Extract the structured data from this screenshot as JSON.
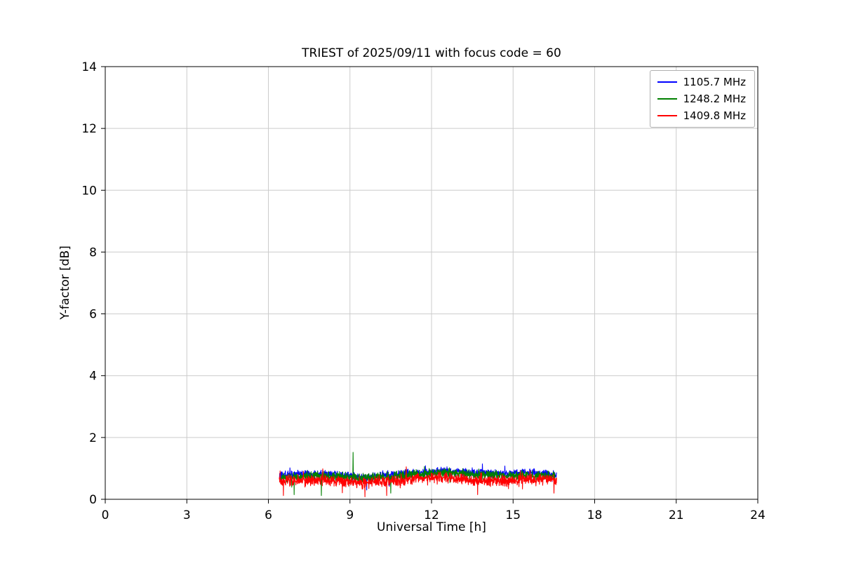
{
  "chart_data": {
    "type": "line",
    "title": "TRIEST of 2025/09/11 with focus code = 60",
    "xlabel": "Universal Time [h]",
    "ylabel": "Y-factor [dB]",
    "xlim": [
      0,
      24
    ],
    "ylim": [
      0,
      14
    ],
    "xticks": [
      0,
      3,
      6,
      9,
      12,
      15,
      18,
      21,
      24
    ],
    "yticks": [
      0,
      2,
      4,
      6,
      8,
      10,
      12,
      14
    ],
    "grid": true,
    "legend_position": "upper right",
    "colors": {
      "grid": "#cccccc",
      "axis": "#000000",
      "background": "#ffffff"
    },
    "series": [
      {
        "name": "1105.7 MHz",
        "color": "#0000ff",
        "x_start": 6.4,
        "x_end": 16.6,
        "mean_profile": [
          [
            6.4,
            0.78
          ],
          [
            7.5,
            0.82
          ],
          [
            8.5,
            0.8
          ],
          [
            9.4,
            0.7
          ],
          [
            10.2,
            0.78
          ],
          [
            11.2,
            0.85
          ],
          [
            12.5,
            0.9
          ],
          [
            13.5,
            0.85
          ],
          [
            14.5,
            0.82
          ],
          [
            15.5,
            0.86
          ],
          [
            16.6,
            0.8
          ]
        ],
        "noise": 0.1,
        "seed": 11057,
        "outliers": [
          {
            "x": 9.62,
            "y": 0.3
          },
          {
            "x": 10.45,
            "y": 0.42
          }
        ]
      },
      {
        "name": "1248.2 MHz",
        "color": "#008000",
        "x_start": 6.42,
        "x_end": 16.55,
        "mean_profile": [
          [
            6.42,
            0.7
          ],
          [
            7.5,
            0.76
          ],
          [
            8.5,
            0.74
          ],
          [
            9.4,
            0.68
          ],
          [
            10.2,
            0.72
          ],
          [
            11.2,
            0.8
          ],
          [
            12.5,
            0.86
          ],
          [
            13.5,
            0.8
          ],
          [
            14.5,
            0.76
          ],
          [
            15.5,
            0.78
          ],
          [
            16.55,
            0.74
          ]
        ],
        "noise": 0.11,
        "seed": 12482,
        "outliers": [
          {
            "x": 9.12,
            "y": 1.52
          },
          {
            "x": 7.95,
            "y": 0.12
          },
          {
            "x": 6.95,
            "y": 0.15
          },
          {
            "x": 10.5,
            "y": 0.2
          }
        ]
      },
      {
        "name": "1409.8 MHz",
        "color": "#ff0000",
        "x_start": 6.4,
        "x_end": 16.6,
        "mean_profile": [
          [
            6.4,
            0.58
          ],
          [
            7.5,
            0.62
          ],
          [
            8.5,
            0.6
          ],
          [
            9.5,
            0.52
          ],
          [
            10.5,
            0.58
          ],
          [
            11.5,
            0.68
          ],
          [
            12.5,
            0.72
          ],
          [
            13.5,
            0.6
          ],
          [
            14.5,
            0.6
          ],
          [
            15.5,
            0.62
          ],
          [
            16.6,
            0.66
          ]
        ],
        "noise": 0.13,
        "seed": 14098,
        "outliers": [
          {
            "x": 6.55,
            "y": 0.12
          },
          {
            "x": 9.55,
            "y": 0.08
          },
          {
            "x": 10.35,
            "y": 0.12
          },
          {
            "x": 13.7,
            "y": 0.15
          },
          {
            "x": 16.5,
            "y": 0.2
          }
        ]
      }
    ]
  }
}
